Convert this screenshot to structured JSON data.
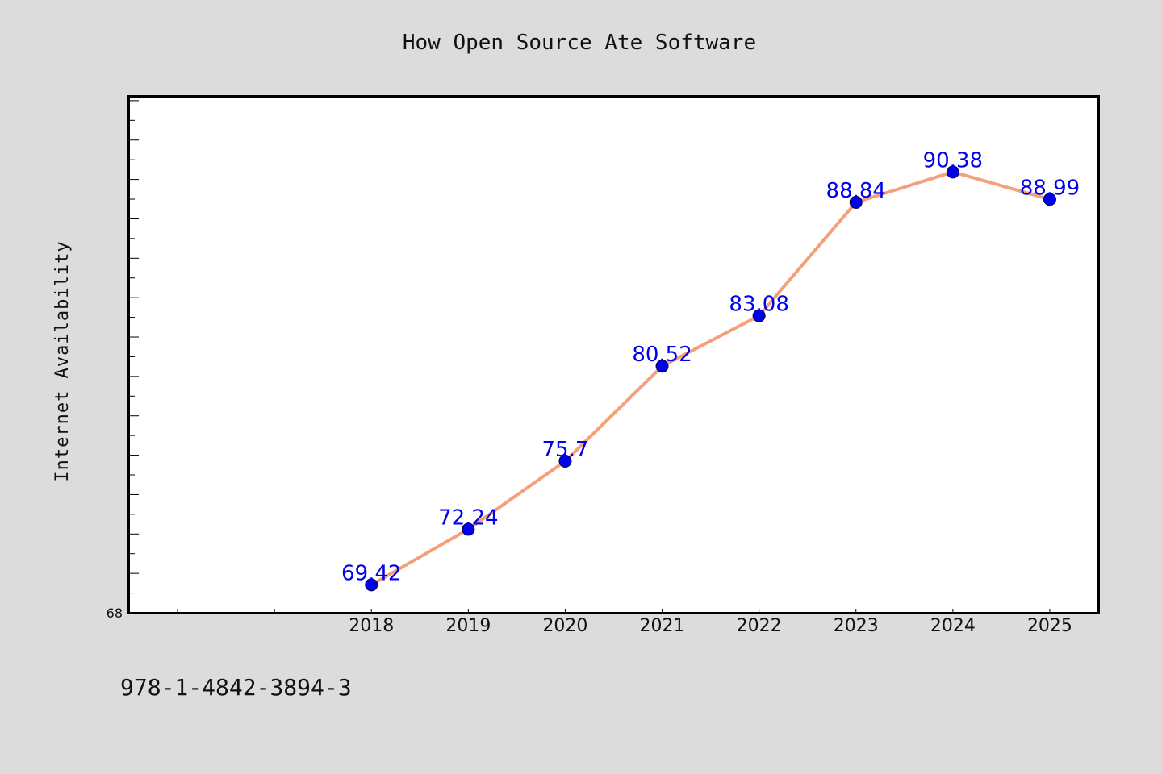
{
  "chart_data": {
    "type": "line",
    "title": "How Open Source Ate Software",
    "xlabel": "",
    "ylabel": "Internet Availability",
    "x": [
      "2018",
      "2019",
      "2020",
      "2021",
      "2022",
      "2023",
      "2024",
      "2025"
    ],
    "series": [
      {
        "values": [
          69.42,
          72.24,
          75.7,
          80.52,
          83.08,
          88.84,
          90.38,
          88.99
        ],
        "data_labels": [
          "69.42",
          "72.24",
          "75.7",
          "80.52",
          "83.08",
          "88.84",
          "90.38",
          "88.99"
        ]
      }
    ],
    "ylim": [
      68,
      94.2
    ],
    "xlim": [
      -2.5,
      7.5
    ],
    "y_tick_labels": [
      "68"
    ],
    "grid": false,
    "legend": "none",
    "line_color": "#f4a07a",
    "marker_color": "#0000ee",
    "label_color": "#0000ee"
  },
  "footer": {
    "isbn": "978-1-4842-3894-3"
  }
}
